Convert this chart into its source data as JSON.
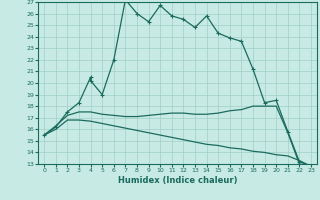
{
  "title": "",
  "xlabel": "Humidex (Indice chaleur)",
  "ylabel": "",
  "bg_color": "#c8eae4",
  "grid_color": "#a0cfc7",
  "line_color": "#1a6b5e",
  "xlim": [
    -0.5,
    23.5
  ],
  "ylim": [
    13,
    27
  ],
  "yticks": [
    13,
    14,
    15,
    16,
    17,
    18,
    19,
    20,
    21,
    22,
    23,
    24,
    25,
    26,
    27
  ],
  "xticks": [
    0,
    1,
    2,
    3,
    4,
    5,
    6,
    7,
    8,
    9,
    10,
    11,
    12,
    13,
    14,
    15,
    16,
    17,
    18,
    19,
    20,
    21,
    22,
    23
  ],
  "line1_x": [
    0,
    1,
    2,
    3,
    4,
    4,
    5,
    6,
    7,
    8,
    9,
    10,
    11,
    12,
    13,
    14,
    15,
    16,
    17,
    18,
    19,
    20,
    21,
    22,
    23
  ],
  "line1_y": [
    15.5,
    16.2,
    17.5,
    18.3,
    20.5,
    20.2,
    19.0,
    22.0,
    27.2,
    26.0,
    25.3,
    26.7,
    25.8,
    25.5,
    24.8,
    25.8,
    24.3,
    23.9,
    23.6,
    21.2,
    18.3,
    18.5,
    15.8,
    13.2,
    12.8
  ],
  "line2_x": [
    0,
    1,
    2,
    3,
    4,
    5,
    6,
    7,
    8,
    9,
    10,
    11,
    12,
    13,
    14,
    15,
    16,
    17,
    18,
    19,
    20,
    21,
    22,
    23
  ],
  "line2_y": [
    15.5,
    16.3,
    17.2,
    17.5,
    17.5,
    17.3,
    17.2,
    17.1,
    17.1,
    17.2,
    17.3,
    17.4,
    17.4,
    17.3,
    17.3,
    17.4,
    17.6,
    17.7,
    18.0,
    18.0,
    18.0,
    15.7,
    13.0,
    12.8
  ],
  "line3_x": [
    0,
    1,
    2,
    3,
    4,
    5,
    6,
    7,
    8,
    9,
    10,
    11,
    12,
    13,
    14,
    15,
    16,
    17,
    18,
    19,
    20,
    21,
    22,
    23
  ],
  "line3_y": [
    15.5,
    16.0,
    16.8,
    16.8,
    16.7,
    16.5,
    16.3,
    16.1,
    15.9,
    15.7,
    15.5,
    15.3,
    15.1,
    14.9,
    14.7,
    14.6,
    14.4,
    14.3,
    14.1,
    14.0,
    13.8,
    13.7,
    13.3,
    12.8
  ]
}
